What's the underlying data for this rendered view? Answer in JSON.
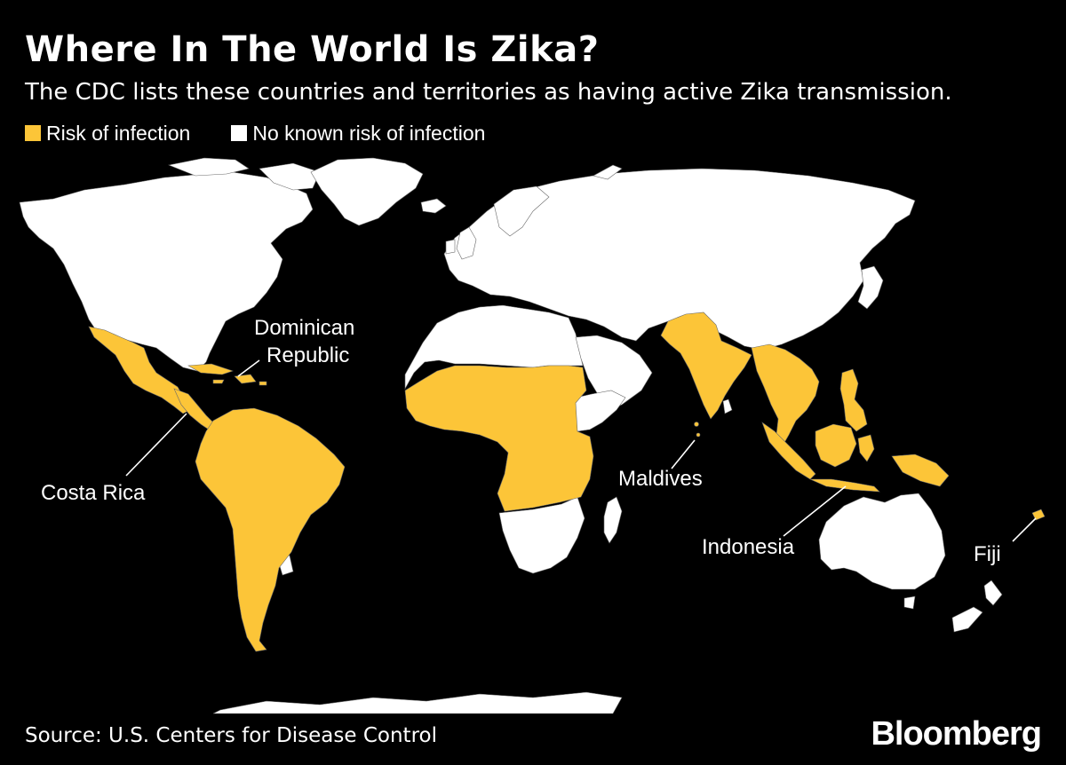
{
  "title": "Where In The World Is Zika?",
  "subtitle": "The CDC lists these countries and territories as having active Zika transmission.",
  "legend": [
    {
      "label": "Risk of infection",
      "color": "#FCC538"
    },
    {
      "label": "No known risk of infection",
      "color": "#FFFFFF"
    }
  ],
  "map": {
    "risk_color": "#FCC538",
    "no_risk_color": "#FFFFFF",
    "background": "#000000",
    "risk_regions": [
      "Mexico",
      "Central America",
      "Caribbean",
      "South America",
      "Central Africa",
      "West Africa",
      "India",
      "Southeast Asia",
      "Philippines",
      "Indonesia",
      "Papua New Guinea",
      "Pacific Islands"
    ]
  },
  "callouts": {
    "dominican_republic": [
      "Dominican",
      "Republic"
    ],
    "costa_rica": "Costa Rica",
    "maldives": "Maldives",
    "indonesia": "Indonesia",
    "fiji": "Fiji"
  },
  "source": "Source: U.S. Centers for Disease Control",
  "brand": "Bloomberg"
}
